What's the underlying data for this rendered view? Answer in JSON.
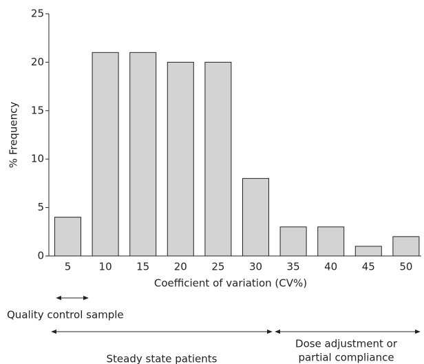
{
  "chart_data": {
    "type": "bar",
    "categories": [
      "5",
      "10",
      "15",
      "20",
      "25",
      "30",
      "35",
      "40",
      "45",
      "50"
    ],
    "values": [
      4,
      21,
      21,
      20,
      20,
      8,
      3,
      3,
      1,
      2
    ],
    "color": "#d3d3d3",
    "ylim": [
      0,
      25
    ],
    "yticks": [
      0,
      5,
      10,
      15,
      20,
      25
    ],
    "xlabel": "Coefficient of variation (CV%)",
    "ylabel": "% Frequency",
    "annotations": [
      "Quality control sample",
      "Steady state patients",
      "Dose adjustment or",
      "partial compliance"
    ]
  }
}
